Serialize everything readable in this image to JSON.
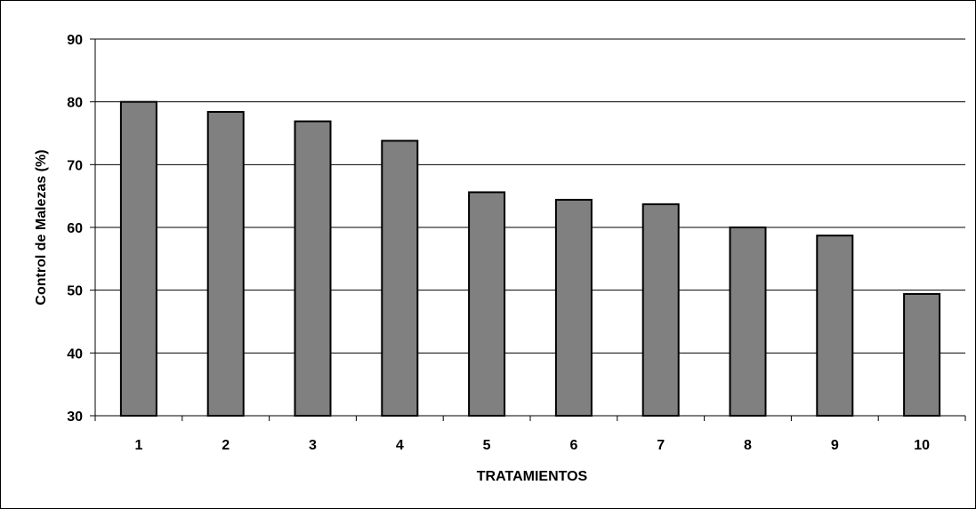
{
  "chart_data": {
    "type": "bar",
    "title": "",
    "xlabel": "TRATAMIENTOS",
    "ylabel": "Control de Malezas (%)",
    "categories": [
      "1",
      "2",
      "3",
      "4",
      "5",
      "6",
      "7",
      "8",
      "9",
      "10"
    ],
    "values": [
      80.0,
      78.4,
      76.9,
      73.8,
      65.6,
      64.4,
      63.7,
      60.0,
      58.7,
      49.4
    ],
    "ylim": [
      30,
      90
    ],
    "yticks": [
      "30",
      "40",
      "50",
      "60",
      "70",
      "80",
      "90"
    ],
    "grid": true,
    "legend": "none",
    "colors": {
      "bar_fill": "#808080",
      "bar_stroke": "#000000",
      "grid": "#000000",
      "axis": "#000000",
      "background": "#ffffff"
    }
  }
}
